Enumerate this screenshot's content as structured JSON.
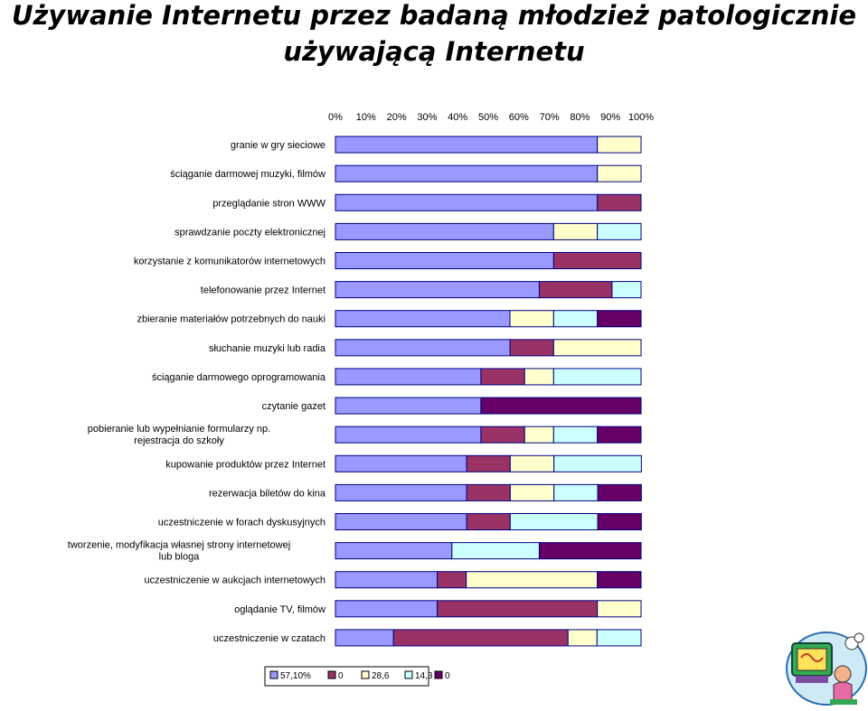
{
  "title_line1": "Używanie Internetu przez badaną młodzież patologicznie",
  "title_line2": "używającą Internetu",
  "colors": {
    "s1": "#9999ff",
    "s2": "#993366",
    "s3": "#ffffcc",
    "s4": "#ccffff",
    "s5": "#660066",
    "border": "#000080"
  },
  "chart_data": {
    "type": "bar",
    "orientation": "horizontal",
    "stacked": "percent",
    "x_ticks": [
      "0%",
      "10%",
      "20%",
      "30%",
      "40%",
      "50%",
      "60%",
      "70%",
      "80%",
      "90%",
      "100%"
    ],
    "xlim": [
      0,
      100
    ],
    "legend_position": "bottom",
    "categories": [
      "granie w gry sieciowe",
      "ściąganie darmowej muzyki, filmów",
      "przeglądanie stron WWW",
      "sprawdzanie poczty elektronicznej",
      "korzystanie z komunikatorów internetowych",
      "telefonowanie przez Internet",
      "zbieranie materiałów potrzebnych do nauki",
      "słuchanie muzyki lub radia",
      "ściąganie darmowego oprogramowania",
      "czytanie gazet",
      "pobieranie lub wypełnianie formularzy np. rejestracja do szkoły",
      "kupowanie produktów przez Internet",
      "rezerwacja biletów do kina",
      "uczestniczenie w forach dyskusyjnych",
      "tworzenie, modyfikacja własnej strony internetowej lub bloga",
      "uczestniczenie w aukcjach internetowych",
      "oglądanie TV, filmów",
      "uczestniczenie w czatach"
    ],
    "series": [
      {
        "name": "57,10%",
        "values": [
          85.7,
          85.7,
          85.7,
          71.4,
          71.4,
          66.7,
          57.1,
          57.1,
          47.6,
          47.6,
          47.6,
          42.9,
          42.9,
          42.9,
          38.1,
          33.3,
          33.3,
          19.0
        ]
      },
      {
        "name": "0",
        "values": [
          0,
          0,
          14.3,
          0,
          28.6,
          23.8,
          0,
          14.3,
          14.3,
          0,
          14.3,
          14.3,
          14.3,
          14.3,
          0,
          9.5,
          52.4,
          57.1
        ]
      },
      {
        "name": "28,6",
        "values": [
          14.3,
          14.3,
          0,
          14.3,
          0,
          0,
          14.3,
          28.6,
          9.5,
          0,
          9.5,
          14.3,
          14.3,
          0,
          0,
          42.9,
          14.3,
          9.5
        ]
      },
      {
        "name": "14,3",
        "values": [
          0,
          0,
          0,
          14.3,
          0,
          9.5,
          14.3,
          0,
          28.6,
          0,
          14.3,
          28.6,
          14.3,
          28.6,
          28.6,
          0,
          0,
          14.4
        ]
      },
      {
        "name": "0",
        "values": [
          0,
          0,
          0,
          0,
          0,
          0,
          14.3,
          0,
          0,
          52.4,
          14.3,
          0,
          14.3,
          14.3,
          33.3,
          14.3,
          0,
          0
        ]
      }
    ]
  }
}
